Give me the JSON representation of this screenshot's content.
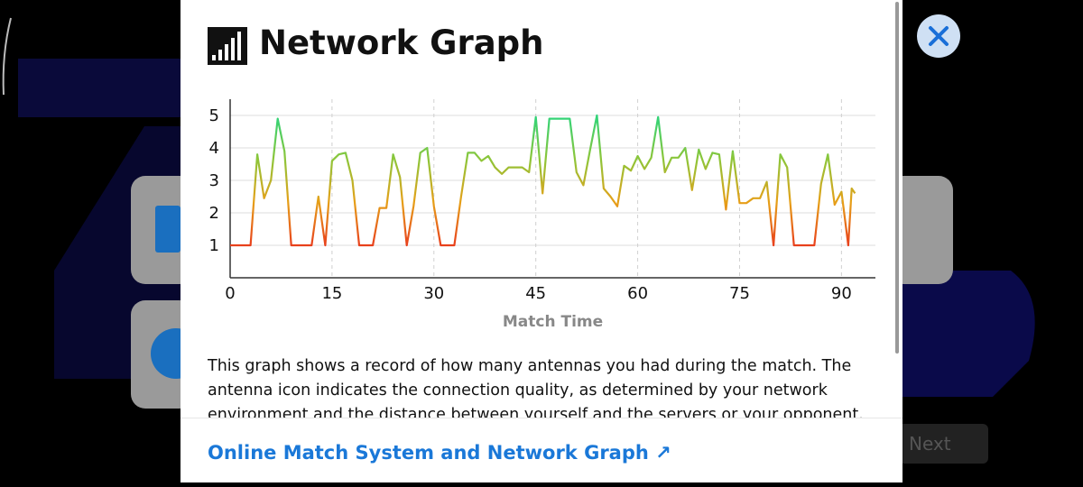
{
  "title": "Network Graph",
  "chart_data": {
    "type": "line",
    "x": [
      0,
      3,
      4,
      5,
      6,
      7,
      8,
      9,
      12,
      13,
      14,
      15,
      16,
      17,
      18,
      19,
      21,
      22,
      23,
      24,
      25,
      26,
      27,
      28,
      29,
      30,
      31,
      33,
      34,
      35,
      36,
      37,
      38,
      39,
      40,
      41,
      42,
      43,
      44,
      45,
      46,
      47,
      50,
      51,
      52,
      53,
      54,
      55,
      56,
      57,
      58,
      59,
      60,
      61,
      62,
      63,
      64,
      65,
      66,
      67,
      68,
      69,
      70,
      71,
      72,
      73,
      74,
      75,
      76,
      77,
      78,
      79,
      80,
      81,
      82,
      83,
      86,
      87,
      88,
      89,
      90,
      91,
      91.5,
      92
    ],
    "values": [
      1,
      1,
      3.8,
      2.45,
      3.0,
      4.9,
      3.9,
      1,
      1,
      2.5,
      1,
      3.6,
      3.8,
      3.85,
      3.0,
      1,
      1,
      2.15,
      2.15,
      3.8,
      3.1,
      1,
      2.2,
      3.85,
      4.0,
      2.2,
      1,
      1,
      2.5,
      3.85,
      3.85,
      3.6,
      3.75,
      3.4,
      3.2,
      3.4,
      3.4,
      3.4,
      3.25,
      4.95,
      2.6,
      4.9,
      4.9,
      3.25,
      2.85,
      3.95,
      5.0,
      2.75,
      2.5,
      2.2,
      3.45,
      3.3,
      3.75,
      3.35,
      3.7,
      4.95,
      3.25,
      3.7,
      3.7,
      4.0,
      2.7,
      3.95,
      3.35,
      3.85,
      3.8,
      2.1,
      3.9,
      2.3,
      2.3,
      2.45,
      2.45,
      2.95,
      1,
      3.8,
      3.4,
      1,
      1,
      2.9,
      3.8,
      2.25,
      2.65,
      1,
      2.75,
      2.6
    ],
    "xlim": [
      0,
      95
    ],
    "ylim": [
      0,
      5.5
    ],
    "xticks": [
      0,
      15,
      30,
      45,
      60,
      75,
      90
    ],
    "yticks": [
      1,
      2,
      3,
      4,
      5
    ],
    "xlabel": "Match Time",
    "grid": true,
    "gradient": [
      "#e8401c",
      "#e6a018",
      "#8cc63a",
      "#2ed47a"
    ]
  },
  "description": "This graph shows a record of how many antennas you had during the match. The antenna icon indicates the connection quality, as determined by your network environment and the distance between yourself and the servers or your opponent.",
  "link": "Online Match System and Network Graph ↗",
  "next_button": "Next"
}
